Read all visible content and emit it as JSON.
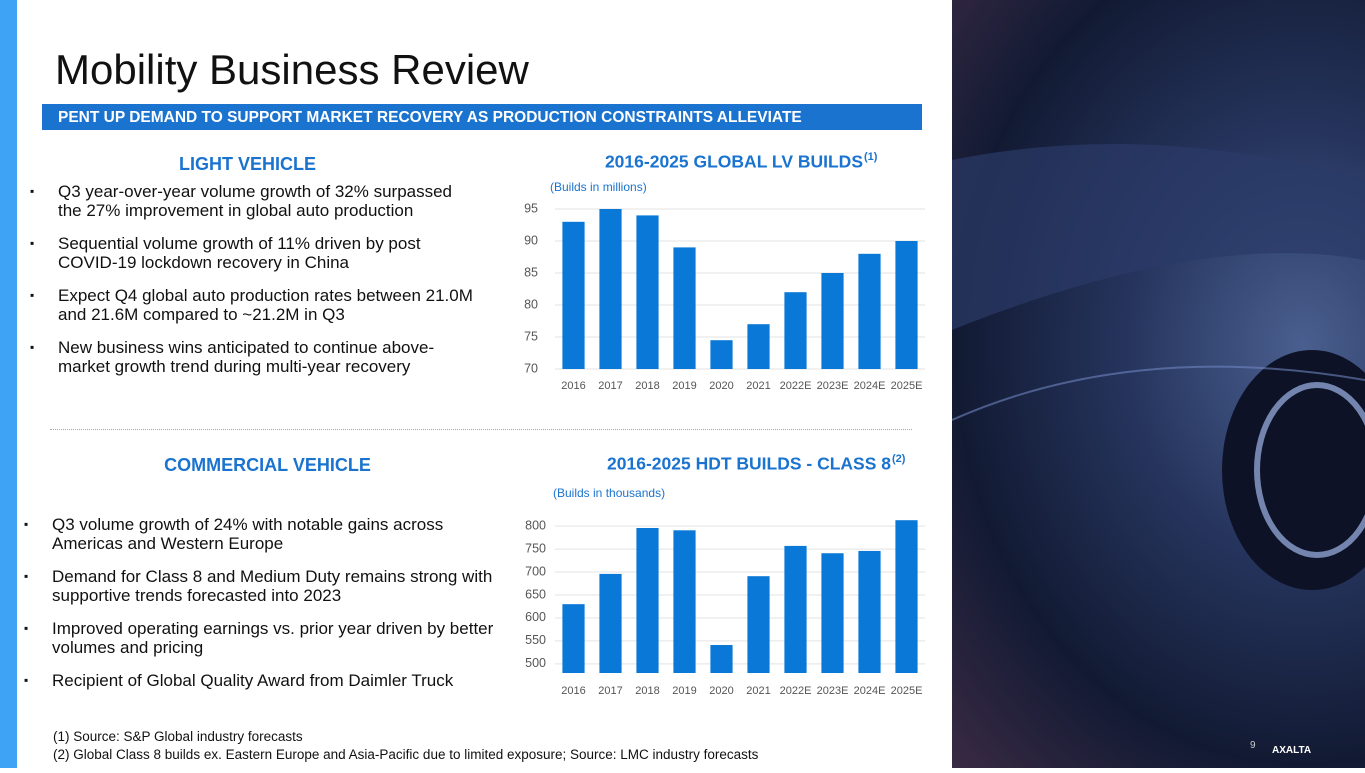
{
  "header": {
    "title": "Mobility Business Review",
    "banner": "PENT UP DEMAND TO SUPPORT MARKET RECOVERY AS PRODUCTION CONSTRAINTS ALLEVIATE"
  },
  "sections": [
    {
      "heading": "LIGHT VEHICLE",
      "bullets": [
        "Q3 year-over-year volume growth of 32% surpassed the 27% improvement in global auto production",
        "Sequential volume growth of 11% driven by post COVID-19 lockdown recovery in China",
        "Expect Q4 global auto production rates between 21.0M and 21.6M compared to ~21.2M in Q3",
        "New business wins anticipated to continue above-market growth trend during multi-year recovery"
      ]
    },
    {
      "heading": "COMMERCIAL VEHICLE",
      "bullets": [
        "Q3 volume growth of 24% with notable gains across Americas and Western Europe",
        "Demand for Class 8 and Medium Duty remains strong with supportive trends forecasted into 2023",
        "Improved operating earnings vs. prior year driven by better volumes and pricing",
        "Recipient of Global Quality Award from Daimler Truck"
      ]
    }
  ],
  "chart_data": [
    {
      "type": "bar",
      "title": "2016-2025 GLOBAL LV BUILDS",
      "title_note": "(1)",
      "subtitle": "(Builds in millions)",
      "categories": [
        "2016",
        "2017",
        "2018",
        "2019",
        "2020",
        "2021",
        "2022E",
        "2023E",
        "2024E",
        "2025E"
      ],
      "values": [
        93,
        95,
        94,
        89,
        74.5,
        77,
        82,
        85,
        88,
        90
      ],
      "color": "#0a78d6",
      "ylim": [
        70,
        95
      ],
      "yticks": [
        70,
        75,
        80,
        85,
        90,
        95
      ],
      "grid": true
    },
    {
      "type": "bar",
      "title": "2016-2025 HDT BUILDS - CLASS 8",
      "title_note": "(2)",
      "subtitle": "(Builds in thousands)",
      "categories": [
        "2016",
        "2017",
        "2018",
        "2019",
        "2020",
        "2021",
        "2022E",
        "2023E",
        "2024E",
        "2025E"
      ],
      "values": [
        630,
        696,
        796,
        791,
        541,
        691,
        757,
        741,
        746,
        813
      ],
      "color": "#0a78d6",
      "ylim": [
        480,
        820
      ],
      "yticks": [
        500,
        550,
        600,
        650,
        700,
        750,
        800
      ],
      "grid": true
    }
  ],
  "footnotes": [
    "(1) Source: S&P Global industry forecasts",
    "(2) Global Class 8 builds ex. Eastern Europe and Asia-Pacific due to limited exposure; Source: LMC industry forecasts"
  ],
  "page_number": "9",
  "logo": "AXALTA"
}
